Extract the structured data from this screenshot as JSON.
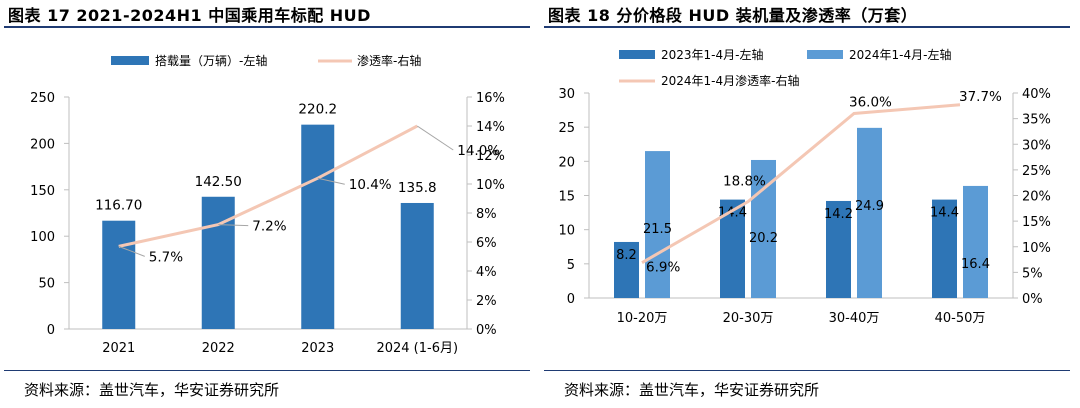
{
  "colors": {
    "dark_blue": "#2e75b6",
    "light_blue": "#5b9bd5",
    "line": "#f4c7b4",
    "rule": "#1f3b73",
    "axis": "#bfbfbf",
    "label_line": "#a6a6a6"
  },
  "left": {
    "title": "图表 17 2021-2024H1 中国乘用车标配 HUD",
    "source": "资料来源：盖世汽车，华安证券研究所",
    "chart_data": {
      "type": "bar",
      "categories": [
        "2021",
        "2022",
        "2023",
        "2024 (1-6月)"
      ],
      "series": [
        {
          "name": "搭载量（万辆）-左轴",
          "type": "bar",
          "axis": "left",
          "color": "#2e75b6",
          "values": [
            116.7,
            142.5,
            220.2,
            135.8
          ],
          "labels": [
            "116.70",
            "142.50",
            "220.2",
            "135.8"
          ]
        },
        {
          "name": "渗透率-右轴",
          "type": "line",
          "axis": "right",
          "color": "#f4c7b4",
          "values": [
            5.7,
            7.2,
            10.4,
            14.0
          ],
          "labels": [
            "5.7%",
            "7.2%",
            "10.4%",
            "14.0%"
          ]
        }
      ],
      "y_left": {
        "range": [
          0,
          250
        ],
        "ticks": [
          "0",
          "50",
          "100",
          "150",
          "200",
          "250"
        ]
      },
      "y_right": {
        "range": [
          0,
          16
        ],
        "ticks": [
          "0%",
          "2%",
          "4%",
          "6%",
          "8%",
          "10%",
          "12%",
          "14%",
          "16%"
        ]
      },
      "legend": "top",
      "grid": false
    }
  },
  "right": {
    "title": "图表 18  分价格段 HUD 装机量及渗透率（万套）",
    "source": "资料来源：盖世汽车，华安证券研究所",
    "chart_data": {
      "type": "bar",
      "categories": [
        "10-20万",
        "20-30万",
        "30-40万",
        "40-50万"
      ],
      "series": [
        {
          "name": "2023年1-4月-左轴",
          "type": "bar",
          "axis": "left",
          "color": "#2e75b6",
          "values": [
            8.2,
            14.4,
            14.2,
            14.4
          ],
          "labels": [
            "8.2",
            "14.4",
            "14.2",
            "14.4"
          ]
        },
        {
          "name": "2024年1-4月-左轴",
          "type": "bar",
          "axis": "left",
          "color": "#5b9bd5",
          "values": [
            21.5,
            20.2,
            24.9,
            16.4
          ],
          "labels": [
            "21.5",
            "20.2",
            "24.9",
            "16.4"
          ]
        },
        {
          "name": "2024年1-4月渗透率-右轴",
          "type": "line",
          "axis": "right",
          "color": "#f4c7b4",
          "values": [
            6.9,
            18.8,
            36.0,
            37.7
          ],
          "labels": [
            "6.9%",
            "18.8%",
            "36.0%",
            "37.7%"
          ]
        }
      ],
      "y_left": {
        "range": [
          0,
          30
        ],
        "ticks": [
          "0",
          "5",
          "10",
          "15",
          "20",
          "25",
          "30"
        ]
      },
      "y_right": {
        "range": [
          0,
          40
        ],
        "ticks": [
          "0%",
          "5%",
          "10%",
          "15%",
          "20%",
          "25%",
          "30%",
          "35%",
          "40%"
        ]
      },
      "legend": "top",
      "grid": false
    }
  }
}
